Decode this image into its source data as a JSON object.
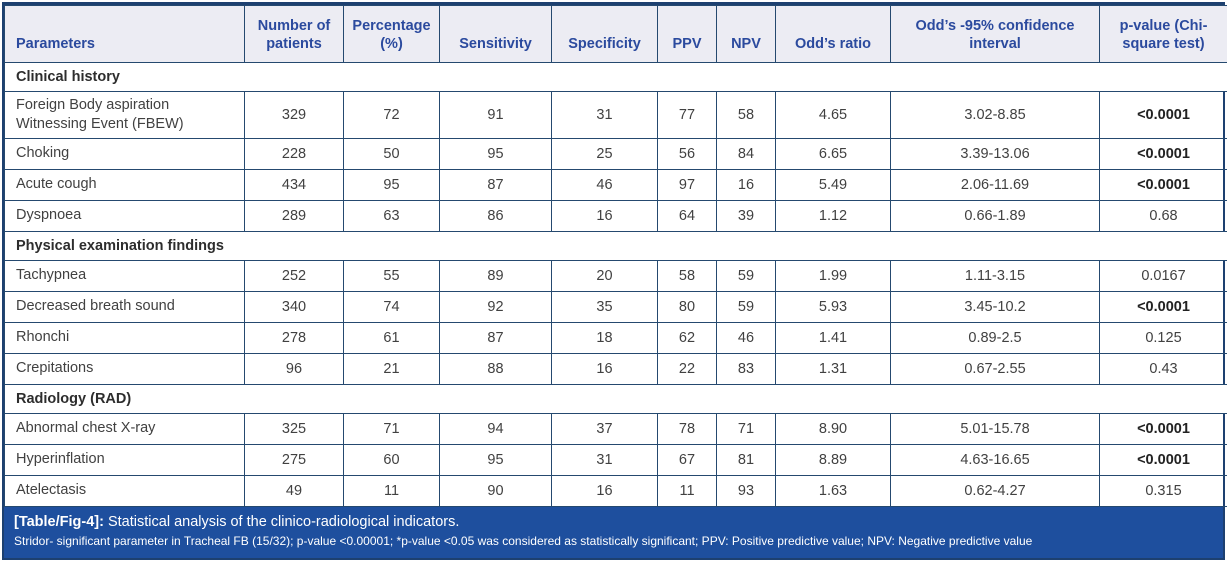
{
  "table": {
    "columns": [
      "Parameters",
      "Number of patients",
      "Percentage (%)",
      "Sensitivity",
      "Specificity",
      "PPV",
      "NPV",
      "Odd’s ratio",
      "Odd’s -95% confidence interval",
      "p-value (Chi-square test)"
    ],
    "sections": [
      {
        "title": "Clinical history",
        "rows": [
          {
            "parameter": "Foreign Body aspiration Witnessing Event (FBEW)",
            "values": [
              "329",
              "72",
              "91",
              "31",
              "77",
              "58",
              "4.65",
              "3.02-8.85",
              "<0.0001"
            ],
            "p_bold": true
          },
          {
            "parameter": "Choking",
            "values": [
              "228",
              "50",
              "95",
              "25",
              "56",
              "84",
              "6.65",
              "3.39-13.06",
              "<0.0001"
            ],
            "p_bold": true
          },
          {
            "parameter": "Acute cough",
            "values": [
              "434",
              "95",
              "87",
              "46",
              "97",
              "16",
              "5.49",
              "2.06-11.69",
              "<0.0001"
            ],
            "p_bold": true
          },
          {
            "parameter": "Dyspnoea",
            "values": [
              "289",
              "63",
              "86",
              "16",
              "64",
              "39",
              "1.12",
              "0.66-1.89",
              "0.68"
            ],
            "p_bold": false
          }
        ]
      },
      {
        "title": "Physical examination findings",
        "rows": [
          {
            "parameter": "Tachypnea",
            "values": [
              "252",
              "55",
              "89",
              "20",
              "58",
              "59",
              "1.99",
              "1.11-3.15",
              "0.0167"
            ],
            "p_bold": false
          },
          {
            "parameter": "Decreased breath sound",
            "values": [
              "340",
              "74",
              "92",
              "35",
              "80",
              "59",
              "5.93",
              "3.45-10.2",
              "<0.0001"
            ],
            "p_bold": true
          },
          {
            "parameter": "Rhonchi",
            "values": [
              "278",
              "61",
              "87",
              "18",
              "62",
              "46",
              "1.41",
              "0.89-2.5",
              "0.125"
            ],
            "p_bold": false
          },
          {
            "parameter": "Crepitations",
            "values": [
              "96",
              "21",
              "88",
              "16",
              "22",
              "83",
              "1.31",
              "0.67-2.55",
              "0.43"
            ],
            "p_bold": false
          }
        ]
      },
      {
        "title": "Radiology (RAD)",
        "rows": [
          {
            "parameter": "Abnormal chest X-ray",
            "values": [
              "325",
              "71",
              "94",
              "37",
              "78",
              "71",
              "8.90",
              "5.01-15.78",
              "<0.0001"
            ],
            "p_bold": true
          },
          {
            "parameter": "Hyperinflation",
            "values": [
              "275",
              "60",
              "95",
              "31",
              "67",
              "81",
              "8.89",
              "4.63-16.65",
              "<0.0001"
            ],
            "p_bold": true
          },
          {
            "parameter": "Atelectasis",
            "values": [
              "49",
              "11",
              "90",
              "16",
              "11",
              "93",
              "1.63",
              "0.62-4.27",
              "0.315"
            ],
            "p_bold": false
          }
        ]
      }
    ]
  },
  "caption": {
    "label": "[Table/Fig-4]:",
    "title": "Statistical analysis of the clinico-radiological indicators.",
    "footnote": "Stridor- significant parameter in Tracheal FB (15/32); p-value <0.00001; *p-value <0.05 was considered as statistically significant; PPV: Positive predictive value; NPV: Negative predictive value"
  },
  "colors": {
    "border": "#25496f",
    "header_background": "#ececf3",
    "header_text": "#2b4a9e",
    "body_text": "#414141",
    "caption_background": "#1e4f9e",
    "caption_text": "#ffffff"
  }
}
